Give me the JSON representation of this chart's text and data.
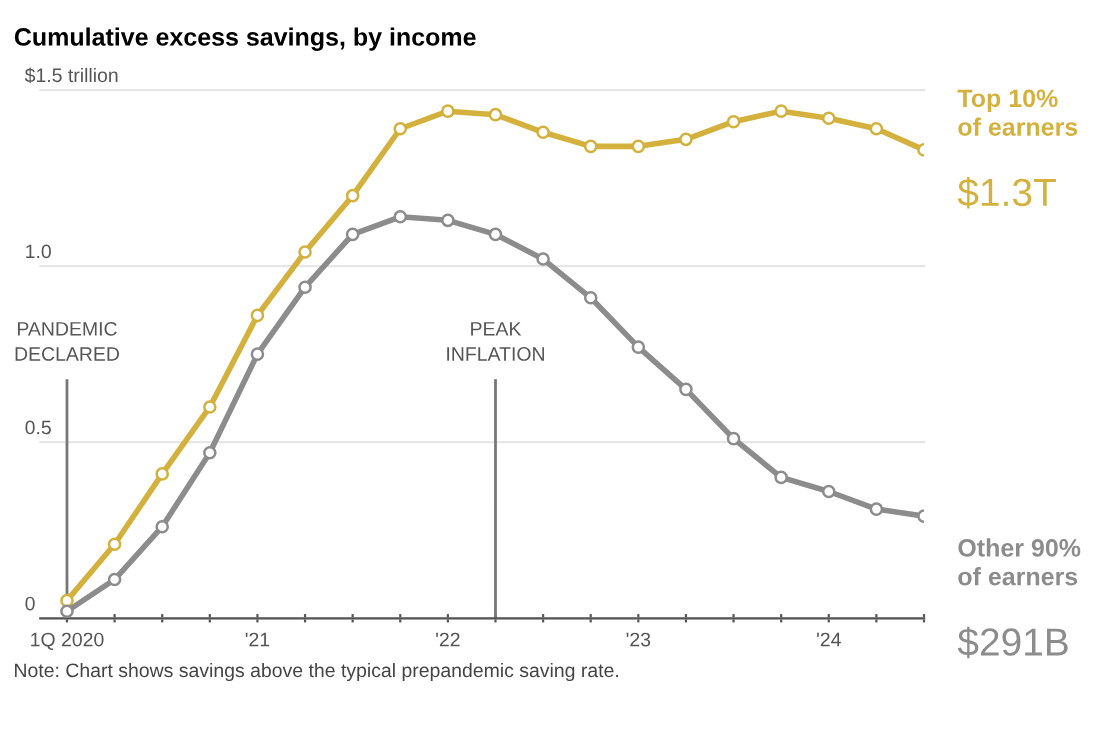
{
  "chart_data": {
    "type": "line",
    "title": "Cumulative excess savings, by income",
    "x": [
      2020,
      2020.25,
      2020.5,
      2020.75,
      2021,
      2021.25,
      2021.5,
      2021.75,
      2022,
      2022.25,
      2022.5,
      2022.75,
      2023,
      2023.25,
      2023.5,
      2023.75,
      2024,
      2024.25,
      2024.5
    ],
    "series": [
      {
        "name": "Top 10%\nof earners",
        "color": "#d4b13c",
        "values": [
          0.05,
          0.21,
          0.41,
          0.6,
          0.86,
          1.04,
          1.2,
          1.39,
          1.44,
          1.43,
          1.38,
          1.34,
          1.34,
          1.36,
          1.41,
          1.44,
          1.42,
          1.39,
          1.33
        ]
      },
      {
        "name": "Other 90%\nof earners",
        "color": "#8c8c8c",
        "values": [
          0.02,
          0.11,
          0.26,
          0.47,
          0.75,
          0.94,
          1.09,
          1.14,
          1.13,
          1.09,
          1.02,
          0.91,
          0.77,
          0.65,
          0.51,
          0.4,
          0.36,
          0.31,
          0.29
        ]
      }
    ],
    "xlim": [
      2019.86,
      2024.5
    ],
    "ylim": [
      0,
      1.5
    ],
    "xticks": [
      {
        "value": 2020,
        "label": "1Q 2020"
      },
      {
        "value": 2020.25,
        "label": null
      },
      {
        "value": 2020.5,
        "label": null
      },
      {
        "value": 2020.75,
        "label": null
      },
      {
        "value": 2021,
        "label": "'21"
      },
      {
        "value": 2021.25,
        "label": null
      },
      {
        "value": 2021.5,
        "label": null
      },
      {
        "value": 2021.75,
        "label": null
      },
      {
        "value": 2022,
        "label": "'22"
      },
      {
        "value": 2022.25,
        "label": null
      },
      {
        "value": 2022.5,
        "label": null
      },
      {
        "value": 2022.75,
        "label": null
      },
      {
        "value": 2023,
        "label": "'23"
      },
      {
        "value": 2023.25,
        "label": null
      },
      {
        "value": 2023.5,
        "label": null
      },
      {
        "value": 2023.75,
        "label": null
      },
      {
        "value": 2024,
        "label": "'24"
      },
      {
        "value": 2024.25,
        "label": null
      },
      {
        "value": 2024.5,
        "label": null
      }
    ],
    "yticks": [
      0,
      0.5,
      {
        "value": 1,
        "label": "1.0"
      },
      {
        "value": 1.5,
        "label": "$1.5 trillion"
      }
    ],
    "ref_lines": [
      {
        "axis": "x",
        "value": 2020,
        "label": "PANDEMIC\nDECLARED",
        "color": "#777777"
      },
      {
        "axis": "x",
        "value": 2022.25,
        "label": "PEAK\nINFLATION",
        "color": "#777777"
      }
    ],
    "annotations": [
      {
        "text": "$1.3T",
        "x": 2024.5,
        "y": 1.33
      },
      {
        "text": "$291B",
        "x": 2024.5,
        "y": 0.29
      },
      "Note: Chart shows savings above the typical prepandemic saving rate."
    ],
    "grid": "y",
    "legend": false,
    "marker": "circle",
    "line_style": "solid"
  }
}
